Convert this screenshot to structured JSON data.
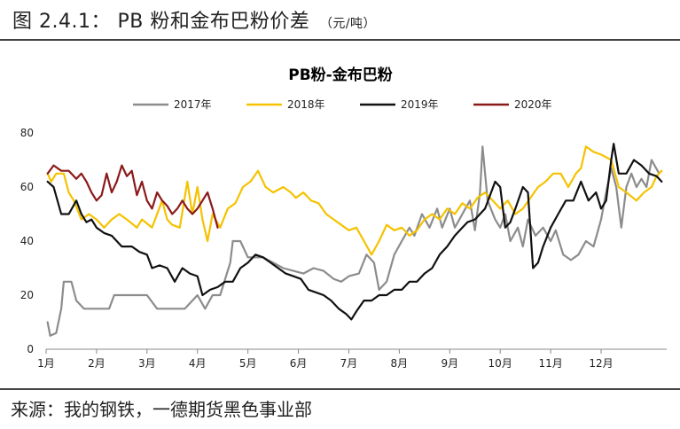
{
  "figure": {
    "label": "图 2.4.1：",
    "title": "PB 粉和金布巴粉价差",
    "unit": "（元/吨）"
  },
  "source": "来源：我的钢铁，一德期货黑色事业部",
  "chart_data": {
    "type": "line",
    "title": "PB粉-金布巴粉",
    "xlabel": "",
    "ylabel": "",
    "x_ticks": [
      "1月",
      "2月",
      "3月",
      "4月",
      "5月",
      "6月",
      "7月",
      "8月",
      "9月",
      "10月",
      "11月",
      "12月"
    ],
    "xlim": [
      0,
      12.3
    ],
    "ylim": [
      0,
      80
    ],
    "y_ticks": [
      0,
      20,
      40,
      60,
      80
    ],
    "grid": false,
    "legend": "top-center",
    "series": [
      {
        "name": "2017年",
        "color": "#8c8c8c",
        "points": [
          [
            0.03,
            10
          ],
          [
            0.08,
            5
          ],
          [
            0.2,
            6
          ],
          [
            0.3,
            15
          ],
          [
            0.35,
            25
          ],
          [
            0.5,
            25
          ],
          [
            0.6,
            18
          ],
          [
            0.75,
            15
          ],
          [
            1.0,
            15
          ],
          [
            1.25,
            15
          ],
          [
            1.35,
            20
          ],
          [
            1.6,
            20
          ],
          [
            2.0,
            20
          ],
          [
            2.2,
            15
          ],
          [
            2.5,
            15
          ],
          [
            2.75,
            15
          ],
          [
            3.0,
            20
          ],
          [
            3.15,
            15
          ],
          [
            3.3,
            20
          ],
          [
            3.45,
            20
          ],
          [
            3.65,
            32
          ],
          [
            3.7,
            40
          ],
          [
            3.85,
            40
          ],
          [
            4.0,
            34
          ],
          [
            4.3,
            34
          ],
          [
            4.5,
            32
          ],
          [
            4.7,
            30
          ],
          [
            4.9,
            29
          ],
          [
            5.1,
            28
          ],
          [
            5.3,
            30
          ],
          [
            5.5,
            29
          ],
          [
            5.7,
            26
          ],
          [
            5.85,
            25
          ],
          [
            6.0,
            27
          ],
          [
            6.2,
            28
          ],
          [
            6.35,
            35
          ],
          [
            6.5,
            32
          ],
          [
            6.6,
            22
          ],
          [
            6.75,
            25
          ],
          [
            6.9,
            35
          ],
          [
            7.05,
            40
          ],
          [
            7.2,
            45
          ],
          [
            7.3,
            42
          ],
          [
            7.45,
            50
          ],
          [
            7.6,
            45
          ],
          [
            7.75,
            52
          ],
          [
            7.85,
            45
          ],
          [
            8.0,
            52
          ],
          [
            8.1,
            45
          ],
          [
            8.25,
            50
          ],
          [
            8.4,
            55
          ],
          [
            8.5,
            44
          ],
          [
            8.6,
            58
          ],
          [
            8.65,
            75
          ],
          [
            8.75,
            55
          ],
          [
            8.9,
            48
          ],
          [
            9.0,
            45
          ],
          [
            9.1,
            50
          ],
          [
            9.2,
            40
          ],
          [
            9.35,
            45
          ],
          [
            9.45,
            38
          ],
          [
            9.55,
            48
          ],
          [
            9.7,
            42
          ],
          [
            9.85,
            45
          ],
          [
            10.0,
            40
          ],
          [
            10.1,
            44
          ],
          [
            10.25,
            35
          ],
          [
            10.4,
            33
          ],
          [
            10.55,
            35
          ],
          [
            10.7,
            40
          ],
          [
            10.85,
            38
          ],
          [
            11.0,
            48
          ],
          [
            11.1,
            58
          ],
          [
            11.2,
            67
          ],
          [
            11.3,
            60
          ],
          [
            11.4,
            45
          ],
          [
            11.5,
            60
          ],
          [
            11.6,
            65
          ],
          [
            11.7,
            60
          ],
          [
            11.8,
            63
          ],
          [
            11.9,
            60
          ],
          [
            12.0,
            70
          ],
          [
            12.15,
            65
          ]
        ]
      },
      {
        "name": "2018年",
        "color": "#f5c200",
        "points": [
          [
            0.03,
            65
          ],
          [
            0.1,
            62
          ],
          [
            0.2,
            65
          ],
          [
            0.35,
            65
          ],
          [
            0.45,
            58
          ],
          [
            0.55,
            55
          ],
          [
            0.7,
            48
          ],
          [
            0.85,
            50
          ],
          [
            1.0,
            48
          ],
          [
            1.15,
            45
          ],
          [
            1.3,
            48
          ],
          [
            1.45,
            50
          ],
          [
            1.6,
            48
          ],
          [
            1.8,
            45
          ],
          [
            1.9,
            48
          ],
          [
            2.1,
            45
          ],
          [
            2.3,
            55
          ],
          [
            2.4,
            48
          ],
          [
            2.5,
            46
          ],
          [
            2.65,
            45
          ],
          [
            2.8,
            62
          ],
          [
            2.9,
            50
          ],
          [
            3.0,
            60
          ],
          [
            3.1,
            48
          ],
          [
            3.2,
            40
          ],
          [
            3.3,
            50
          ],
          [
            3.45,
            45
          ],
          [
            3.6,
            52
          ],
          [
            3.75,
            54
          ],
          [
            3.9,
            60
          ],
          [
            4.05,
            62
          ],
          [
            4.2,
            66
          ],
          [
            4.35,
            60
          ],
          [
            4.5,
            58
          ],
          [
            4.7,
            60
          ],
          [
            4.85,
            58
          ],
          [
            4.95,
            56
          ],
          [
            5.1,
            58
          ],
          [
            5.25,
            55
          ],
          [
            5.4,
            54
          ],
          [
            5.55,
            50
          ],
          [
            5.7,
            48
          ],
          [
            5.85,
            46
          ],
          [
            6.0,
            44
          ],
          [
            6.15,
            45
          ],
          [
            6.3,
            40
          ],
          [
            6.45,
            35
          ],
          [
            6.6,
            40
          ],
          [
            6.75,
            46
          ],
          [
            6.9,
            44
          ],
          [
            7.05,
            45
          ],
          [
            7.2,
            42
          ],
          [
            7.35,
            44
          ],
          [
            7.5,
            48
          ],
          [
            7.65,
            50
          ],
          [
            7.8,
            48
          ],
          [
            7.95,
            52
          ],
          [
            8.1,
            50
          ],
          [
            8.25,
            54
          ],
          [
            8.4,
            52
          ],
          [
            8.55,
            56
          ],
          [
            8.7,
            58
          ],
          [
            8.85,
            55
          ],
          [
            9.0,
            52
          ],
          [
            9.15,
            55
          ],
          [
            9.3,
            50
          ],
          [
            9.45,
            52
          ],
          [
            9.6,
            56
          ],
          [
            9.75,
            60
          ],
          [
            9.9,
            62
          ],
          [
            10.05,
            65
          ],
          [
            10.2,
            65
          ],
          [
            10.35,
            60
          ],
          [
            10.5,
            65
          ],
          [
            10.6,
            67
          ],
          [
            10.7,
            75
          ],
          [
            10.85,
            73
          ],
          [
            11.0,
            72
          ],
          [
            11.2,
            70
          ],
          [
            11.35,
            60
          ],
          [
            11.5,
            58
          ],
          [
            11.7,
            55
          ],
          [
            11.85,
            58
          ],
          [
            12.0,
            60
          ],
          [
            12.1,
            64
          ],
          [
            12.2,
            66
          ]
        ]
      },
      {
        "name": "2019年",
        "color": "#111111",
        "points": [
          [
            0.03,
            62
          ],
          [
            0.15,
            60
          ],
          [
            0.3,
            50
          ],
          [
            0.45,
            50
          ],
          [
            0.6,
            55
          ],
          [
            0.7,
            50
          ],
          [
            0.8,
            47
          ],
          [
            0.9,
            48
          ],
          [
            1.0,
            45
          ],
          [
            1.15,
            43
          ],
          [
            1.3,
            42
          ],
          [
            1.5,
            38
          ],
          [
            1.7,
            38
          ],
          [
            1.85,
            36
          ],
          [
            2.0,
            35
          ],
          [
            2.1,
            30
          ],
          [
            2.25,
            31
          ],
          [
            2.4,
            30
          ],
          [
            2.55,
            25
          ],
          [
            2.7,
            30
          ],
          [
            2.85,
            28
          ],
          [
            3.0,
            27
          ],
          [
            3.1,
            20
          ],
          [
            3.25,
            22
          ],
          [
            3.4,
            23
          ],
          [
            3.55,
            25
          ],
          [
            3.7,
            25
          ],
          [
            3.85,
            30
          ],
          [
            4.0,
            32
          ],
          [
            4.15,
            35
          ],
          [
            4.3,
            34
          ],
          [
            4.45,
            32
          ],
          [
            4.6,
            30
          ],
          [
            4.75,
            28
          ],
          [
            4.9,
            27
          ],
          [
            5.05,
            26
          ],
          [
            5.2,
            22
          ],
          [
            5.35,
            21
          ],
          [
            5.5,
            20
          ],
          [
            5.65,
            18
          ],
          [
            5.8,
            15
          ],
          [
            5.95,
            13
          ],
          [
            6.05,
            11
          ],
          [
            6.15,
            14
          ],
          [
            6.3,
            18
          ],
          [
            6.45,
            18
          ],
          [
            6.6,
            20
          ],
          [
            6.75,
            20
          ],
          [
            6.9,
            22
          ],
          [
            7.05,
            22
          ],
          [
            7.2,
            25
          ],
          [
            7.35,
            25
          ],
          [
            7.5,
            28
          ],
          [
            7.65,
            30
          ],
          [
            7.8,
            35
          ],
          [
            7.95,
            38
          ],
          [
            8.1,
            42
          ],
          [
            8.25,
            45
          ],
          [
            8.35,
            47
          ],
          [
            8.5,
            48
          ],
          [
            8.6,
            50
          ],
          [
            8.7,
            52
          ],
          [
            8.8,
            57
          ],
          [
            8.9,
            62
          ],
          [
            9.0,
            60
          ],
          [
            9.1,
            45
          ],
          [
            9.2,
            47
          ],
          [
            9.3,
            52
          ],
          [
            9.45,
            60
          ],
          [
            9.55,
            58
          ],
          [
            9.65,
            30
          ],
          [
            9.75,
            32
          ],
          [
            9.85,
            38
          ],
          [
            10.0,
            45
          ],
          [
            10.15,
            50
          ],
          [
            10.3,
            55
          ],
          [
            10.45,
            55
          ],
          [
            10.6,
            62
          ],
          [
            10.75,
            55
          ],
          [
            10.9,
            58
          ],
          [
            11.0,
            52
          ],
          [
            11.1,
            55
          ],
          [
            11.2,
            70
          ],
          [
            11.25,
            76
          ],
          [
            11.35,
            65
          ],
          [
            11.5,
            65
          ],
          [
            11.65,
            70
          ],
          [
            11.8,
            68
          ],
          [
            11.95,
            65
          ],
          [
            12.1,
            64
          ],
          [
            12.2,
            62
          ]
        ]
      },
      {
        "name": "2020年",
        "color": "#8b1a1a",
        "points": [
          [
            0.03,
            65
          ],
          [
            0.15,
            68
          ],
          [
            0.3,
            66
          ],
          [
            0.45,
            66
          ],
          [
            0.6,
            63
          ],
          [
            0.7,
            65
          ],
          [
            0.8,
            62
          ],
          [
            0.9,
            58
          ],
          [
            1.0,
            55
          ],
          [
            1.1,
            57
          ],
          [
            1.2,
            65
          ],
          [
            1.3,
            58
          ],
          [
            1.4,
            62
          ],
          [
            1.5,
            68
          ],
          [
            1.6,
            64
          ],
          [
            1.7,
            66
          ],
          [
            1.8,
            57
          ],
          [
            1.9,
            62
          ],
          [
            2.0,
            55
          ],
          [
            2.1,
            52
          ],
          [
            2.2,
            58
          ],
          [
            2.3,
            55
          ],
          [
            2.4,
            53
          ],
          [
            2.5,
            50
          ],
          [
            2.6,
            52
          ],
          [
            2.7,
            55
          ],
          [
            2.8,
            52
          ],
          [
            2.9,
            50
          ],
          [
            3.0,
            52
          ],
          [
            3.1,
            55
          ],
          [
            3.2,
            58
          ],
          [
            3.3,
            52
          ],
          [
            3.4,
            45
          ]
        ]
      }
    ]
  }
}
